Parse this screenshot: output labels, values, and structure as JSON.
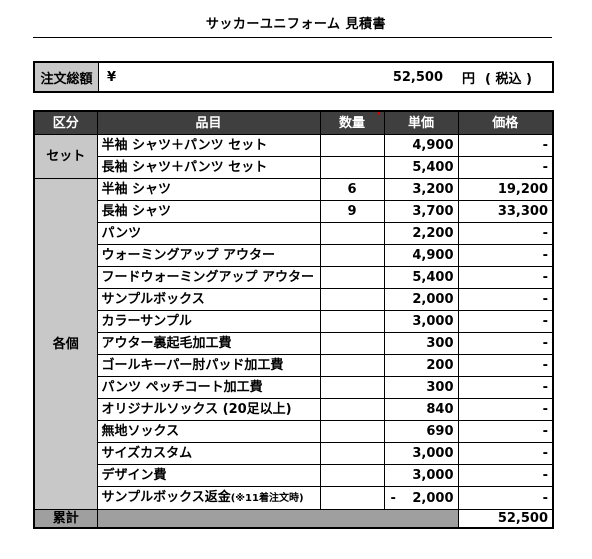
{
  "title": "サッカーユニフォーム 見積書",
  "total": {
    "label": "注文総額",
    "yen": "¥",
    "amount": "52,500",
    "unit": "円",
    "tax": "( 税込 )"
  },
  "headers": {
    "category": "区分",
    "item": "品目",
    "qty": "数量",
    "unit_price": "単価",
    "price": "価格"
  },
  "groups": [
    {
      "label": "セット",
      "rows": [
        {
          "item": "半袖 シャツ＋パンツ セット",
          "qty": "",
          "unit_price": "4,900",
          "price": "-"
        },
        {
          "item": "長袖 シャツ＋パンツ セット",
          "qty": "",
          "unit_price": "5,400",
          "price": "-"
        }
      ]
    },
    {
      "label": "各個",
      "rows": [
        {
          "item": "半袖 シャツ",
          "qty": "6",
          "unit_price": "3,200",
          "price": "19,200"
        },
        {
          "item": "長袖 シャツ",
          "qty": "9",
          "unit_price": "3,700",
          "price": "33,300"
        },
        {
          "item": "パンツ",
          "qty": "",
          "unit_price": "2,200",
          "price": "-"
        },
        {
          "item": "ウォーミングアップ アウター",
          "qty": "",
          "unit_price": "4,900",
          "price": "-"
        },
        {
          "item": "フードウォーミングアップ アウター",
          "qty": "",
          "unit_price": "5,400",
          "price": "-"
        },
        {
          "item": "サンプルボックス",
          "qty": "",
          "unit_price": "2,000",
          "price": "-"
        },
        {
          "item": "カラーサンプル",
          "qty": "",
          "unit_price": "3,000",
          "price": "-"
        },
        {
          "item": "アウター裏起毛加工費",
          "qty": "",
          "unit_price": "300",
          "price": "-"
        },
        {
          "item": "ゴールキーパー肘パッド加工費",
          "qty": "",
          "unit_price": "200",
          "price": "-"
        },
        {
          "item": "パンツ ペッチコート加工費",
          "qty": "",
          "unit_price": "300",
          "price": "-"
        },
        {
          "item": "オリジナルソックス (20足以上)",
          "qty": "",
          "unit_price": "840",
          "price": "-"
        },
        {
          "item": "無地ソックス",
          "qty": "",
          "unit_price": "690",
          "price": "-"
        },
        {
          "item": "サイズカスタム",
          "qty": "",
          "unit_price": "3,000",
          "price": "-"
        },
        {
          "item": "デザイン費",
          "qty": "",
          "unit_price": "3,000",
          "price": "-"
        }
      ],
      "refund": {
        "item": "サンプルボックス返金",
        "note": "(※11着注文時)",
        "qty": "",
        "minus": "-",
        "unit_price": "2,000",
        "price": "-"
      }
    }
  ],
  "sum": {
    "label": "累計",
    "value": "52,500"
  }
}
